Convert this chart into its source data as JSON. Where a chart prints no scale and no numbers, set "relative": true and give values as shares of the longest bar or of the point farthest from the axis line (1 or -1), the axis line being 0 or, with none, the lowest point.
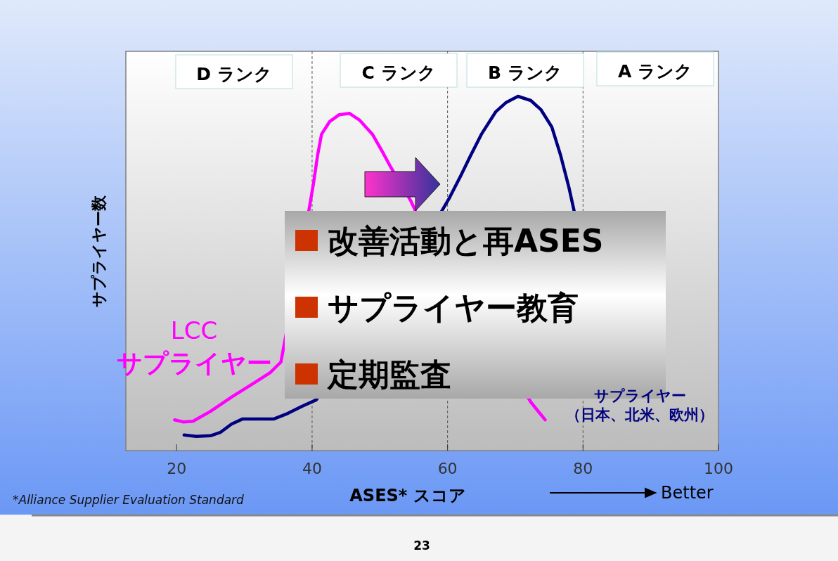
{
  "chart_data": {
    "type": "line",
    "relative": true,
    "xlabel": "ASES* スコア",
    "ylabel": "サプライヤー数",
    "xlim": [
      12.5,
      100
    ],
    "xticks": [
      20,
      40,
      60,
      80,
      100
    ],
    "tick_labels": "x",
    "line_style": "solid",
    "series": [
      {
        "name": "LCC サプライヤー",
        "color": "#ff00ff",
        "x": [
          19.7,
          21.0,
          22.4,
          25.0,
          28.1,
          31.2,
          33.8,
          35.4,
          39.5,
          40.2,
          40.8,
          41.4,
          42.6,
          44.0,
          45.5,
          47.0,
          48.9,
          50.4,
          51.5,
          54.6,
          55.3,
          72.3,
          74.4
        ],
        "values": [
          0.087,
          0.081,
          0.083,
          0.111,
          0.151,
          0.188,
          0.22,
          0.25,
          0.675,
          0.754,
          0.833,
          0.893,
          0.929,
          0.948,
          0.952,
          0.933,
          0.893,
          0.843,
          0.804,
          0.704,
          0.675,
          0.137,
          0.087
        ]
      },
      {
        "name": "サプライヤー（日本、北米、欧州）",
        "color": "#000080",
        "x": [
          21.1,
          22.9,
          25.0,
          26.5,
          28.1,
          29.7,
          32.3,
          34.3,
          36.4,
          38.5,
          40.6,
          59.1,
          60.3,
          61.9,
          63.4,
          65.0,
          67.1,
          68.6,
          70.4,
          72.3,
          73.8,
          75.4,
          76.7,
          77.9,
          78.7
        ],
        "values": [
          0.044,
          0.04,
          0.042,
          0.052,
          0.075,
          0.089,
          0.089,
          0.089,
          0.105,
          0.125,
          0.143,
          0.675,
          0.714,
          0.774,
          0.833,
          0.893,
          0.956,
          0.982,
          1,
          0.988,
          0.962,
          0.913,
          0.833,
          0.744,
          0.675
        ]
      }
    ],
    "ref_lines": [
      {
        "axis": "x",
        "value": 40,
        "line_style": "dashed",
        "color": "#555555"
      },
      {
        "axis": "x",
        "value": 60,
        "line_style": "dashed",
        "color": "#555555"
      },
      {
        "axis": "x",
        "value": 80,
        "line_style": "dashed",
        "color": "#555555"
      }
    ],
    "annotations": [
      "改善活動と再ASES",
      "サプライヤー教育",
      "定期監査",
      "Better",
      "*Alliance Supplier Evaluation Standard",
      "23",
      "D ランク",
      "C ランク",
      "B ランク",
      "A ランク"
    ]
  }
}
